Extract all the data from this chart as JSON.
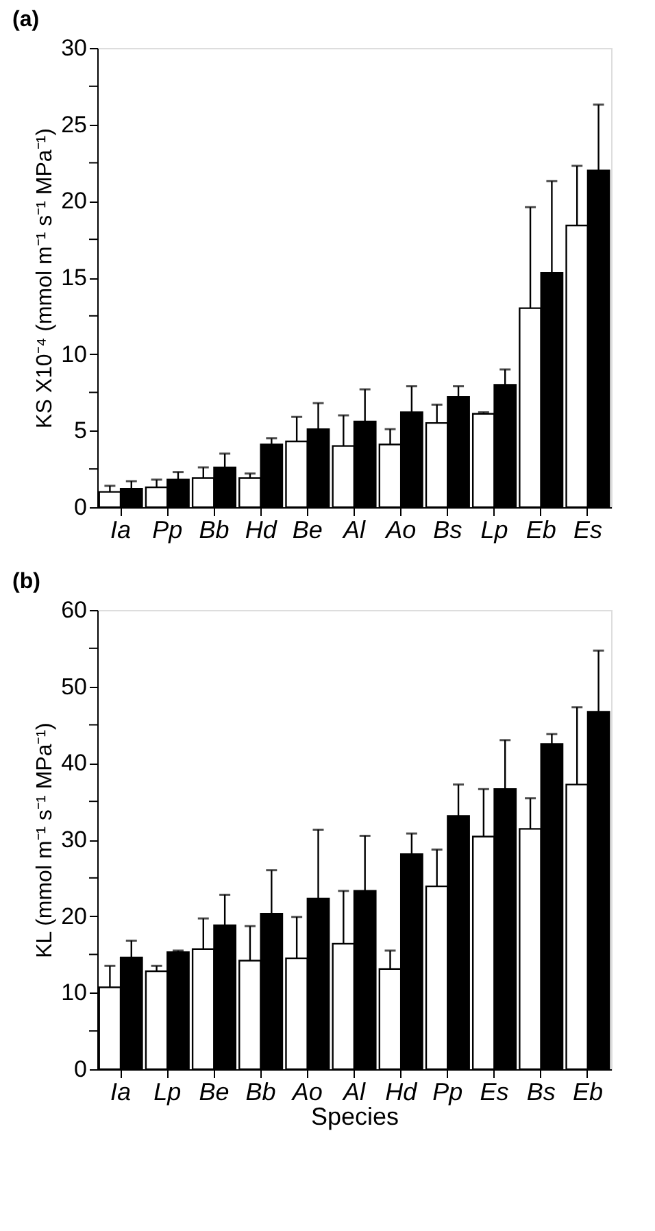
{
  "chart_data": [
    {
      "type": "bar",
      "title": "(a)",
      "ylabel": "KS X10⁻⁴ (mmol m⁻¹ s⁻¹ MPa⁻¹)",
      "categories": [
        "Ia",
        "Pp",
        "Bb",
        "Hd",
        "Be",
        "Al",
        "Ao",
        "Bs",
        "Lp",
        "Eb",
        "Es"
      ],
      "series": [
        {
          "color": "#ffffff",
          "values": [
            1.0,
            1.3,
            1.9,
            1.9,
            4.3,
            4.0,
            4.1,
            5.5,
            6.1,
            13.0,
            18.4
          ],
          "errors": [
            [
              1.0,
              1.4
            ],
            [
              1.3,
              1.8
            ],
            [
              1.9,
              2.6
            ],
            [
              1.9,
              2.2
            ],
            [
              4.3,
              5.9
            ],
            [
              4.0,
              6.0
            ],
            [
              4.1,
              5.1
            ],
            [
              5.5,
              6.7
            ],
            [
              6.1,
              6.2
            ],
            [
              13.0,
              19.6
            ],
            [
              18.4,
              22.3
            ]
          ]
        },
        {
          "color": "#000000",
          "values": [
            1.2,
            1.8,
            2.6,
            4.1,
            5.1,
            5.6,
            6.2,
            7.2,
            8.0,
            15.3,
            22.0
          ],
          "errors": [
            [
              1.2,
              1.7
            ],
            [
              1.8,
              2.3
            ],
            [
              2.6,
              3.5
            ],
            [
              4.1,
              4.5
            ],
            [
              5.1,
              6.8
            ],
            [
              5.6,
              7.7
            ],
            [
              6.2,
              7.9
            ],
            [
              7.2,
              7.9
            ],
            [
              8.0,
              9.0
            ],
            [
              15.3,
              21.3
            ],
            [
              22.0,
              26.3
            ]
          ]
        }
      ],
      "ylim": [
        0,
        30
      ],
      "yticks": [
        0,
        {
          "value": 2.5,
          "label": null
        },
        5,
        {
          "value": 7.5,
          "label": null
        },
        10,
        {
          "value": 12.5,
          "label": null
        },
        15,
        {
          "value": 17.5,
          "label": null
        },
        20,
        {
          "value": 22.5,
          "label": null
        },
        25,
        {
          "value": 27.5,
          "label": null
        },
        30
      ],
      "grid": false
    },
    {
      "type": "bar",
      "title": "(b)",
      "ylabel": "KL (mmol m⁻¹ s⁻¹ MPa⁻¹)",
      "xlabel": "Species",
      "categories": [
        "Ia",
        "Lp",
        "Be",
        "Bb",
        "Ao",
        "Al",
        "Hd",
        "Pp",
        "Es",
        "Bs",
        "Eb"
      ],
      "series": [
        {
          "color": "#ffffff",
          "values": [
            10.7,
            12.8,
            15.7,
            14.2,
            14.5,
            16.4,
            13.1,
            23.9,
            30.4,
            31.4,
            37.2
          ],
          "errors": [
            [
              10.7,
              13.5
            ],
            [
              12.8,
              13.5
            ],
            [
              15.7,
              19.7
            ],
            [
              14.2,
              18.7
            ],
            [
              14.5,
              19.9
            ],
            [
              16.4,
              23.3
            ],
            [
              13.1,
              15.5
            ],
            [
              23.9,
              28.7
            ],
            [
              30.4,
              36.6
            ],
            [
              31.4,
              35.4
            ],
            [
              37.2,
              47.3
            ]
          ]
        },
        {
          "color": "#000000",
          "values": [
            14.6,
            15.3,
            18.8,
            20.3,
            22.3,
            23.3,
            28.1,
            33.1,
            36.6,
            42.5,
            46.7
          ],
          "errors": [
            [
              14.6,
              16.8
            ],
            [
              15.3,
              15.5
            ],
            [
              18.8,
              22.8
            ],
            [
              20.3,
              26.0
            ],
            [
              22.3,
              31.3
            ],
            [
              23.3,
              30.5
            ],
            [
              28.1,
              30.8
            ],
            [
              33.1,
              37.2
            ],
            [
              36.6,
              43.0
            ],
            [
              42.5,
              43.8
            ],
            [
              46.7,
              54.7
            ]
          ]
        }
      ],
      "ylim": [
        0,
        60
      ],
      "yticks": [
        0,
        {
          "value": 5,
          "label": null
        },
        10,
        {
          "value": 15,
          "label": null
        },
        20,
        {
          "value": 25,
          "label": null
        },
        30,
        {
          "value": 35,
          "label": null
        },
        40,
        {
          "value": 45,
          "label": null
        },
        50,
        {
          "value": 55,
          "label": null
        },
        60
      ],
      "grid": false
    }
  ]
}
